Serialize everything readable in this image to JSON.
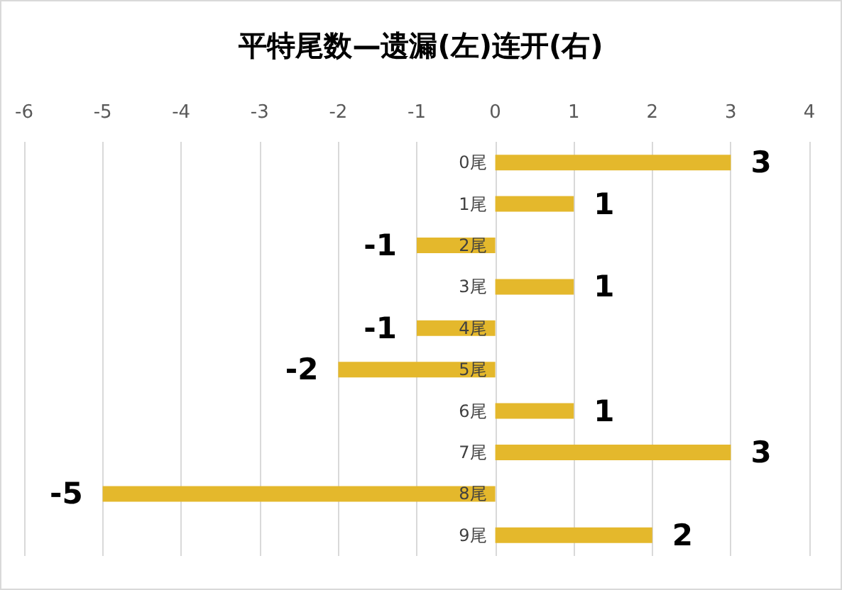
{
  "chart_data": {
    "type": "bar",
    "orientation": "horizontal",
    "title": "平特尾数—遗漏(左)连开(右)",
    "categories": [
      "0尾",
      "1尾",
      "2尾",
      "3尾",
      "4尾",
      "5尾",
      "6尾",
      "7尾",
      "8尾",
      "9尾"
    ],
    "values": [
      3,
      1,
      -1,
      1,
      -1,
      -2,
      1,
      3,
      -5,
      2
    ],
    "color": "#e4b82c",
    "xlim": [
      -6,
      4
    ],
    "xticks": [
      -6,
      -5,
      -4,
      -3,
      -2,
      -1,
      0,
      1,
      2,
      3,
      4
    ],
    "grid": "x",
    "data_labels": true
  }
}
